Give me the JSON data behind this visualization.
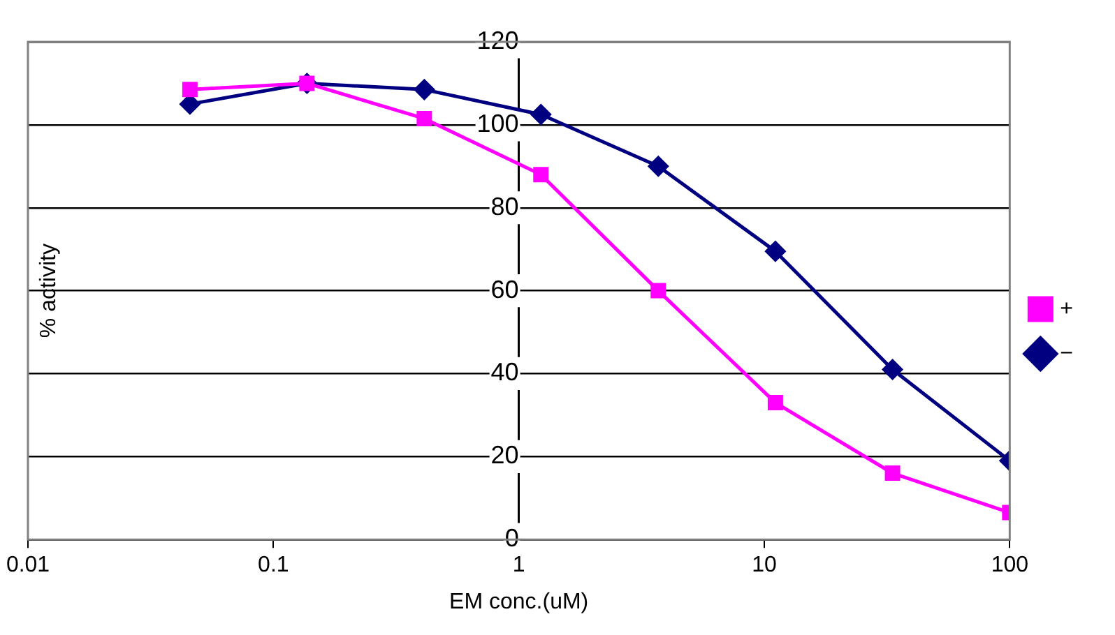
{
  "chart_data": {
    "type": "line",
    "xlabel": "EM conc.(uM)",
    "ylabel": "% activity",
    "x": [
      0.0457,
      0.137,
      0.412,
      1.23,
      3.7,
      11.1,
      33.3,
      100
    ],
    "series": [
      {
        "name": "−",
        "color": "#000080",
        "marker": "diamond",
        "values": [
          105,
          110,
          108.5,
          102.5,
          90,
          69.5,
          41,
          19
        ]
      },
      {
        "name": "+",
        "color": "#ff00ff",
        "marker": "square",
        "values": [
          108.5,
          110,
          101.5,
          88,
          60,
          33,
          16,
          6.5
        ]
      }
    ],
    "log": "x",
    "xlim": [
      0.01,
      100
    ],
    "xticks": [
      0.01,
      0.1,
      1,
      10,
      100
    ],
    "ylim": [
      0,
      120
    ],
    "yticks": [
      0,
      20,
      40,
      60,
      80,
      100,
      120
    ],
    "grid": "y",
    "legend": "right",
    "line_style": "solid"
  }
}
